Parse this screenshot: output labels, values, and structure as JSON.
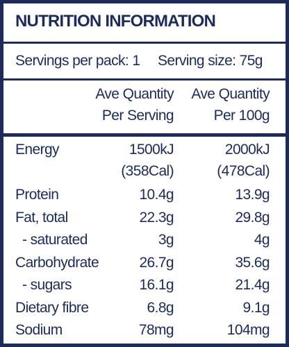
{
  "header": {
    "title": "NUTRITION INFORMATION"
  },
  "servings": [
    "Servings per pack: 1",
    "Serving size: 75g"
  ],
  "columns": [
    [
      "Ave Quantity",
      "Per Serving"
    ],
    [
      "Ave Quantity",
      "Per 100g"
    ]
  ],
  "rows": [
    {
      "name": "Energy",
      "per_serving": [
        "1500kJ",
        "(358Cal)"
      ],
      "per_100g": [
        "2000kJ",
        "(478Cal)"
      ]
    },
    {
      "name": "Protein",
      "per_serving": [
        "10.4g"
      ],
      "per_100g": [
        "13.9g"
      ]
    },
    {
      "name": "Fat, total",
      "per_serving": [
        "22.3g"
      ],
      "per_100g": [
        "29.8g"
      ]
    },
    {
      "name": "- saturated",
      "per_serving": [
        "3g"
      ],
      "per_100g": [
        "4g"
      ]
    },
    {
      "name": "Carbohydrate",
      "per_serving": [
        "26.7g"
      ],
      "per_100g": [
        "35.6g"
      ]
    },
    {
      "name": "- sugars",
      "per_serving": [
        "16.1g"
      ],
      "per_100g": [
        "21.4g"
      ]
    },
    {
      "name": "Dietary fibre",
      "per_serving": [
        "6.8g"
      ],
      "per_100g": [
        "9.1g"
      ]
    },
    {
      "name": "Sodium",
      "per_serving": [
        "78mg"
      ],
      "per_100g": [
        "104mg"
      ]
    }
  ]
}
